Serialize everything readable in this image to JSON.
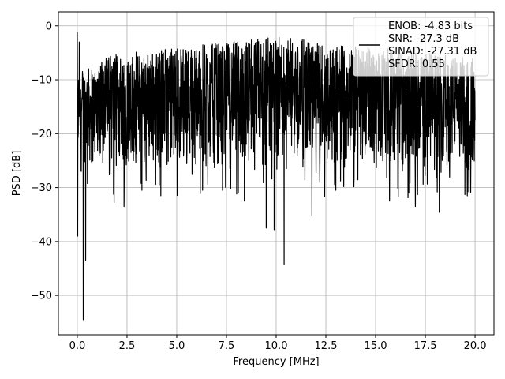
{
  "chart_data": {
    "type": "line",
    "title": "",
    "xlabel": "Frequency [MHz]",
    "ylabel": "PSD [dB]",
    "xlim": [
      -0.95,
      20.95
    ],
    "ylim": [
      -57.3,
      2.6
    ],
    "grid": true,
    "legend_position": "top-right",
    "x_ticks": [
      0.0,
      2.5,
      5.0,
      7.5,
      10.0,
      12.5,
      15.0,
      17.5,
      20.0
    ],
    "x_tick_labels": [
      "0.0",
      "2.5",
      "5.0",
      "7.5",
      "10.0",
      "12.5",
      "15.0",
      "17.5",
      "20.0"
    ],
    "y_ticks": [
      0,
      -10,
      -20,
      -30,
      -40,
      -50
    ],
    "y_tick_labels": [
      "0",
      "−10",
      "−20",
      "−30",
      "−40",
      "−50"
    ],
    "series": [
      {
        "name": "ENOB: -4.83 bits\nSNR: -27.3 dB\nSINAD: -27.31 dB\nSFDR: 0.55",
        "color": "#000000",
        "x_start": 0.0,
        "x_end": 20.0,
        "samples": 2000,
        "typical_band": [
          -25,
          -2
        ],
        "notable_points": [
          {
            "x": 0.0,
            "y": -1.2
          },
          {
            "x": 0.02,
            "y": -39
          },
          {
            "x": 0.1,
            "y": -3
          },
          {
            "x": 0.3,
            "y": -54.5
          },
          {
            "x": 0.42,
            "y": -43.5
          },
          {
            "x": 1.85,
            "y": -32.8
          },
          {
            "x": 2.35,
            "y": -33.5
          },
          {
            "x": 3.25,
            "y": -30.5
          },
          {
            "x": 4.2,
            "y": -31.5
          },
          {
            "x": 6.3,
            "y": -30.5
          },
          {
            "x": 7.3,
            "y": -30.5
          },
          {
            "x": 8.4,
            "y": -32.5
          },
          {
            "x": 9.5,
            "y": -37.5
          },
          {
            "x": 9.9,
            "y": -37.8
          },
          {
            "x": 10.4,
            "y": -44.3
          },
          {
            "x": 11.8,
            "y": -35.3
          },
          {
            "x": 13.0,
            "y": -30.5
          },
          {
            "x": 15.7,
            "y": -32.5
          },
          {
            "x": 17.0,
            "y": -33.5
          },
          {
            "x": 18.2,
            "y": -34.6
          },
          {
            "x": 20.0,
            "y": -17.5
          }
        ]
      }
    ]
  }
}
